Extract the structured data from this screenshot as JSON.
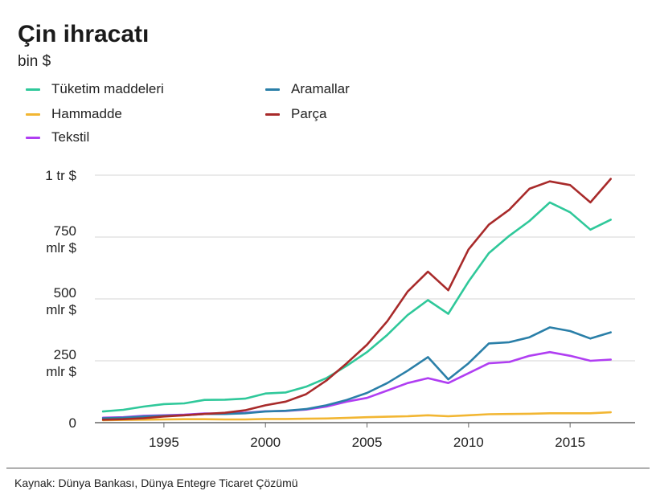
{
  "chart_data": {
    "type": "line",
    "title": "Çin ihracatı",
    "subtitle": "bin $",
    "xlabel": "",
    "ylabel": "",
    "xlim": [
      1991.6,
      2018.2
    ],
    "ylim": [
      0,
      1000000000
    ],
    "x_ticks": [
      1995,
      2000,
      2005,
      2010,
      2015
    ],
    "x_tick_labels": [
      "1995",
      "2000",
      "2005",
      "2010",
      "2015"
    ],
    "y_ticks": [
      {
        "value": 0,
        "lines": [
          "0"
        ]
      },
      {
        "value": 250000000,
        "lines": [
          "250",
          "mlr $"
        ]
      },
      {
        "value": 500000000,
        "lines": [
          "500",
          "mlr $"
        ]
      },
      {
        "value": 750000000,
        "lines": [
          "750",
          "mlr $"
        ]
      },
      {
        "value": 1000000000,
        "lines": [
          "1 tr $"
        ]
      }
    ],
    "grid": true,
    "legend_placement": "top-left",
    "x": [
      1992,
      1993,
      1994,
      1995,
      1996,
      1997,
      1998,
      1999,
      2000,
      2001,
      2002,
      2003,
      2004,
      2005,
      2006,
      2007,
      2008,
      2009,
      2010,
      2011,
      2012,
      2013,
      2014,
      2015,
      2016,
      2017
    ],
    "series": [
      {
        "name": "Tüketim maddeleri",
        "color": "#2fc89a",
        "values": [
          45000000,
          52000000,
          65000000,
          75000000,
          78000000,
          92000000,
          93000000,
          97000000,
          118000000,
          122000000,
          145000000,
          180000000,
          230000000,
          285000000,
          355000000,
          435000000,
          495000000,
          440000000,
          570000000,
          685000000,
          755000000,
          815000000,
          890000000,
          850000000,
          780000000,
          820000000
        ]
      },
      {
        "name": "Hammadde",
        "color": "#f2b632",
        "values": [
          10000000,
          11000000,
          12000000,
          13000000,
          14000000,
          14000000,
          13000000,
          13000000,
          15000000,
          15000000,
          16000000,
          17000000,
          19000000,
          22000000,
          24000000,
          26000000,
          30000000,
          26000000,
          30000000,
          34000000,
          35000000,
          36000000,
          38000000,
          38000000,
          38000000,
          42000000
        ]
      },
      {
        "name": "Tekstil",
        "color": "#b03ef2",
        "values": [
          20000000,
          22000000,
          28000000,
          30000000,
          32000000,
          37000000,
          37000000,
          40000000,
          46000000,
          47000000,
          53000000,
          65000000,
          85000000,
          100000000,
          130000000,
          160000000,
          180000000,
          160000000,
          200000000,
          240000000,
          245000000,
          270000000,
          285000000,
          270000000,
          250000000,
          255000000
        ]
      },
      {
        "name": "Aramallar",
        "color": "#2a7fa8",
        "values": [
          18000000,
          20000000,
          25000000,
          28000000,
          30000000,
          35000000,
          35000000,
          38000000,
          45000000,
          48000000,
          55000000,
          70000000,
          92000000,
          120000000,
          160000000,
          210000000,
          265000000,
          175000000,
          240000000,
          320000000,
          325000000,
          345000000,
          385000000,
          370000000,
          340000000,
          365000000
        ]
      },
      {
        "name": "Parça",
        "color": "#a82a2a",
        "values": [
          12000000,
          14000000,
          18000000,
          25000000,
          30000000,
          35000000,
          40000000,
          50000000,
          70000000,
          85000000,
          115000000,
          170000000,
          240000000,
          315000000,
          410000000,
          530000000,
          610000000,
          535000000,
          700000000,
          800000000,
          860000000,
          945000000,
          975000000,
          960000000,
          890000000,
          985000000
        ]
      }
    ],
    "source": "Kaynak: Dünya Bankası, Dünya Entegre Ticaret Çözümü"
  }
}
